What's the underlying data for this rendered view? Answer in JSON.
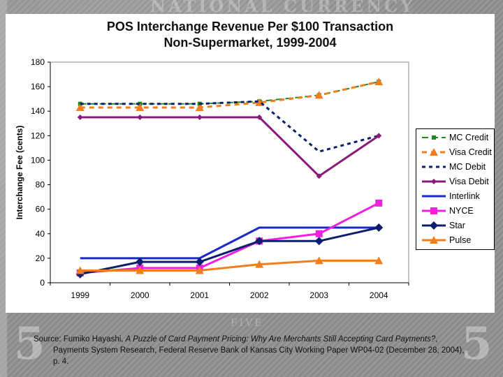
{
  "chart_data": {
    "type": "line",
    "title_line1": "POS Interchange Revenue Per $100 Transaction",
    "title_line2": "Non-Supermarket, 1999-2004",
    "ylabel": "Interchange Fee (cents)",
    "xlabel": "",
    "categories": [
      "1999",
      "2000",
      "2001",
      "2002",
      "2003",
      "2004"
    ],
    "ylim": [
      0,
      180
    ],
    "yticks": [
      0,
      20,
      40,
      60,
      80,
      100,
      120,
      140,
      160,
      180
    ],
    "grid": false,
    "legend_position": "right",
    "series": [
      {
        "name": "MC Credit",
        "values": [
          146,
          146,
          146,
          148,
          153,
          164
        ],
        "color": "#1e8a1e",
        "dash": "long-dash",
        "marker": "square-small"
      },
      {
        "name": "Visa Credit",
        "values": [
          143,
          143,
          143,
          147,
          153,
          164
        ],
        "color": "#f07d1e",
        "dash": "dash",
        "marker": "triangle"
      },
      {
        "name": "MC Debit",
        "values": [
          146,
          146,
          146,
          148,
          107,
          120
        ],
        "color": "#0b1f6e",
        "dash": "dot-dash",
        "marker": "none"
      },
      {
        "name": "Visa Debit",
        "values": [
          135,
          135,
          135,
          135,
          87,
          120
        ],
        "color": "#8a1a7a",
        "dash": "solid",
        "marker": "diamond-small"
      },
      {
        "name": "Interlink",
        "values": [
          20,
          20,
          20,
          45,
          45,
          45
        ],
        "color": "#1a2ac8",
        "dash": "solid",
        "marker": "none"
      },
      {
        "name": "NYCE",
        "values": [
          8,
          12,
          12,
          34,
          40,
          65
        ],
        "color": "#f020e0",
        "dash": "solid",
        "marker": "square"
      },
      {
        "name": "Star",
        "values": [
          7,
          17,
          17,
          34,
          34,
          45
        ],
        "color": "#0b1f6e",
        "dash": "solid",
        "marker": "diamond"
      },
      {
        "name": "Pulse",
        "values": [
          10,
          10,
          10,
          15,
          18,
          18
        ],
        "color": "#f07d1e",
        "dash": "solid",
        "marker": "triangle"
      }
    ]
  },
  "source": {
    "prefix": "Source: Fumiko Hayashi, ",
    "title_italic": "A Puzzle of Card Payment Pricing: Why Are Merchants Still Accepting Card Payments?",
    "suffix": ", Payments System Research, Federal Reserve Bank of Kansas City Working Paper WP04-02 (December 28, 2004), p. 4."
  },
  "background": {
    "banner_text": "NATIONAL CURRENCY",
    "corner_numeral": "5",
    "bottom_text": "FIVE"
  }
}
